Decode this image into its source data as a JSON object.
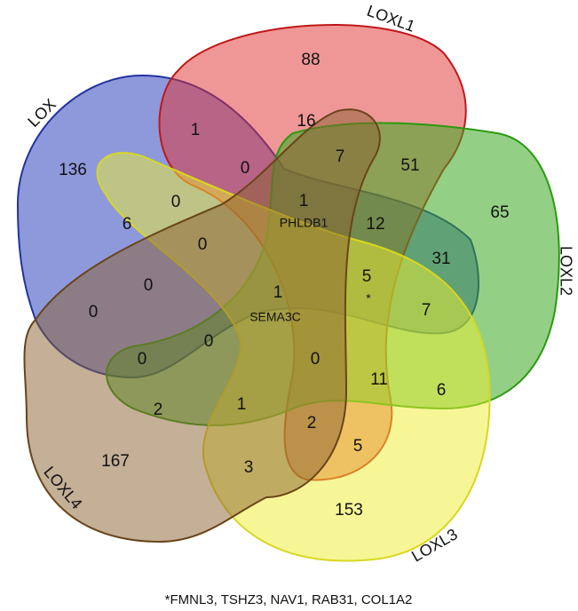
{
  "sets": [
    "LOX",
    "LOXL1",
    "LOXL2",
    "LOXL3",
    "LOXL4"
  ],
  "regions": [
    88,
    1,
    16,
    7,
    51,
    136,
    0,
    65,
    0,
    1,
    6,
    12,
    0,
    31,
    5,
    0,
    1,
    0,
    7,
    0,
    0,
    0,
    11,
    6,
    2,
    1,
    2,
    5,
    167,
    3,
    153
  ],
  "genes": [
    "PHLDB1",
    "SEMA3C",
    "*"
  ],
  "footnote": "*FMNL3, TSHZ3, NAV1, RAB31, COL1A2"
}
